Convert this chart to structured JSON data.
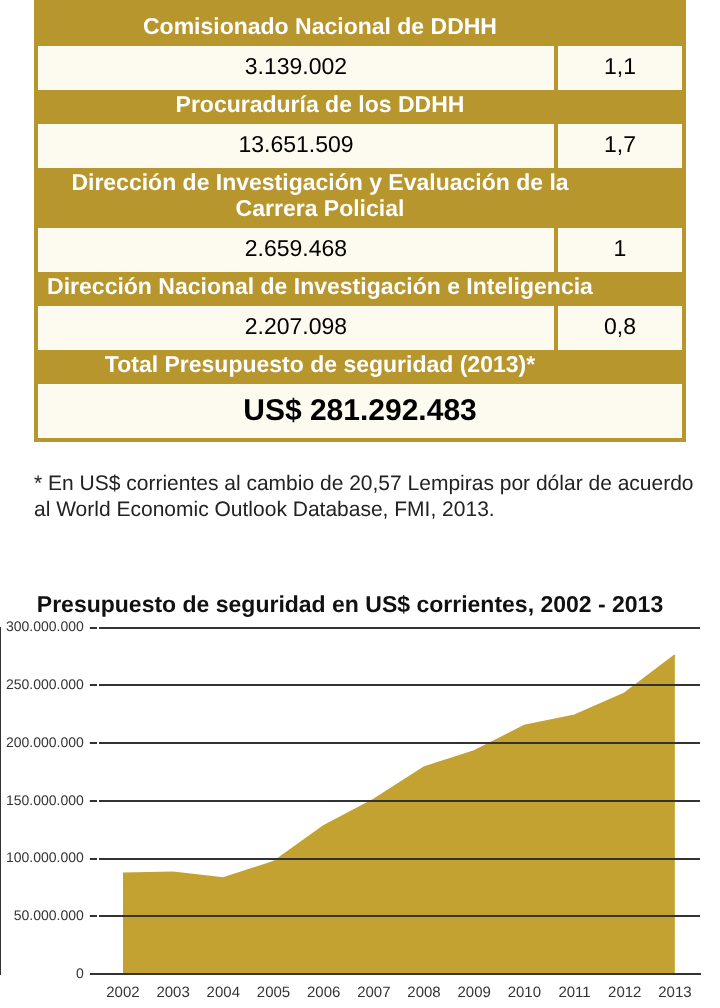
{
  "chart_data": {
    "type": "area",
    "title": "Presupuesto de seguridad en US$ corrientes, 2002 - 2013",
    "categories": [
      "2002",
      "2003",
      "2004",
      "2005",
      "2006",
      "2007",
      "2008",
      "2009",
      "2010",
      "2011",
      "2012",
      "2013"
    ],
    "series": [
      {
        "color": "#c3a232",
        "values": [
          87000000,
          88000000,
          83000000,
          97000000,
          128000000,
          151000000,
          179000000,
          193000000,
          215000000,
          224000000,
          243000000,
          276000000
        ]
      }
    ],
    "ylim": [
      0,
      300000000
    ],
    "yticks": [
      0,
      {
        "value": 50000000,
        "label": "50.000.000"
      },
      {
        "value": 100000000,
        "label": "100.000.000"
      },
      {
        "value": 150000000,
        "label": "150.000.000"
      },
      {
        "value": 200000000,
        "label": "200.000.000"
      },
      {
        "value": 250000000,
        "label": "250.000.000"
      },
      {
        "value": 300000000,
        "label": "300.000.000"
      }
    ],
    "grid": "y",
    "legend": false,
    "annotations": [
      "Comisionado Nacional de DDHH",
      "3.139.002",
      "1,1",
      "Procuraduría de los DDHH",
      "13.651.509",
      "1,7",
      "Dirección de Investigación y Evaluación de la Carrera Policial",
      "2.659.468",
      "1",
      "Dirección Nacional de Investigación e Inteligencia",
      "2.207.098",
      "0,8",
      "Total Presupuesto de seguridad (2013)*",
      "US$ 281.292.483",
      "* En US$ corrientes al cambio de 20,57 Lempiras por dólar de acuerdo al World Economic Outlook Database, FMI, 2013."
    ]
  }
}
